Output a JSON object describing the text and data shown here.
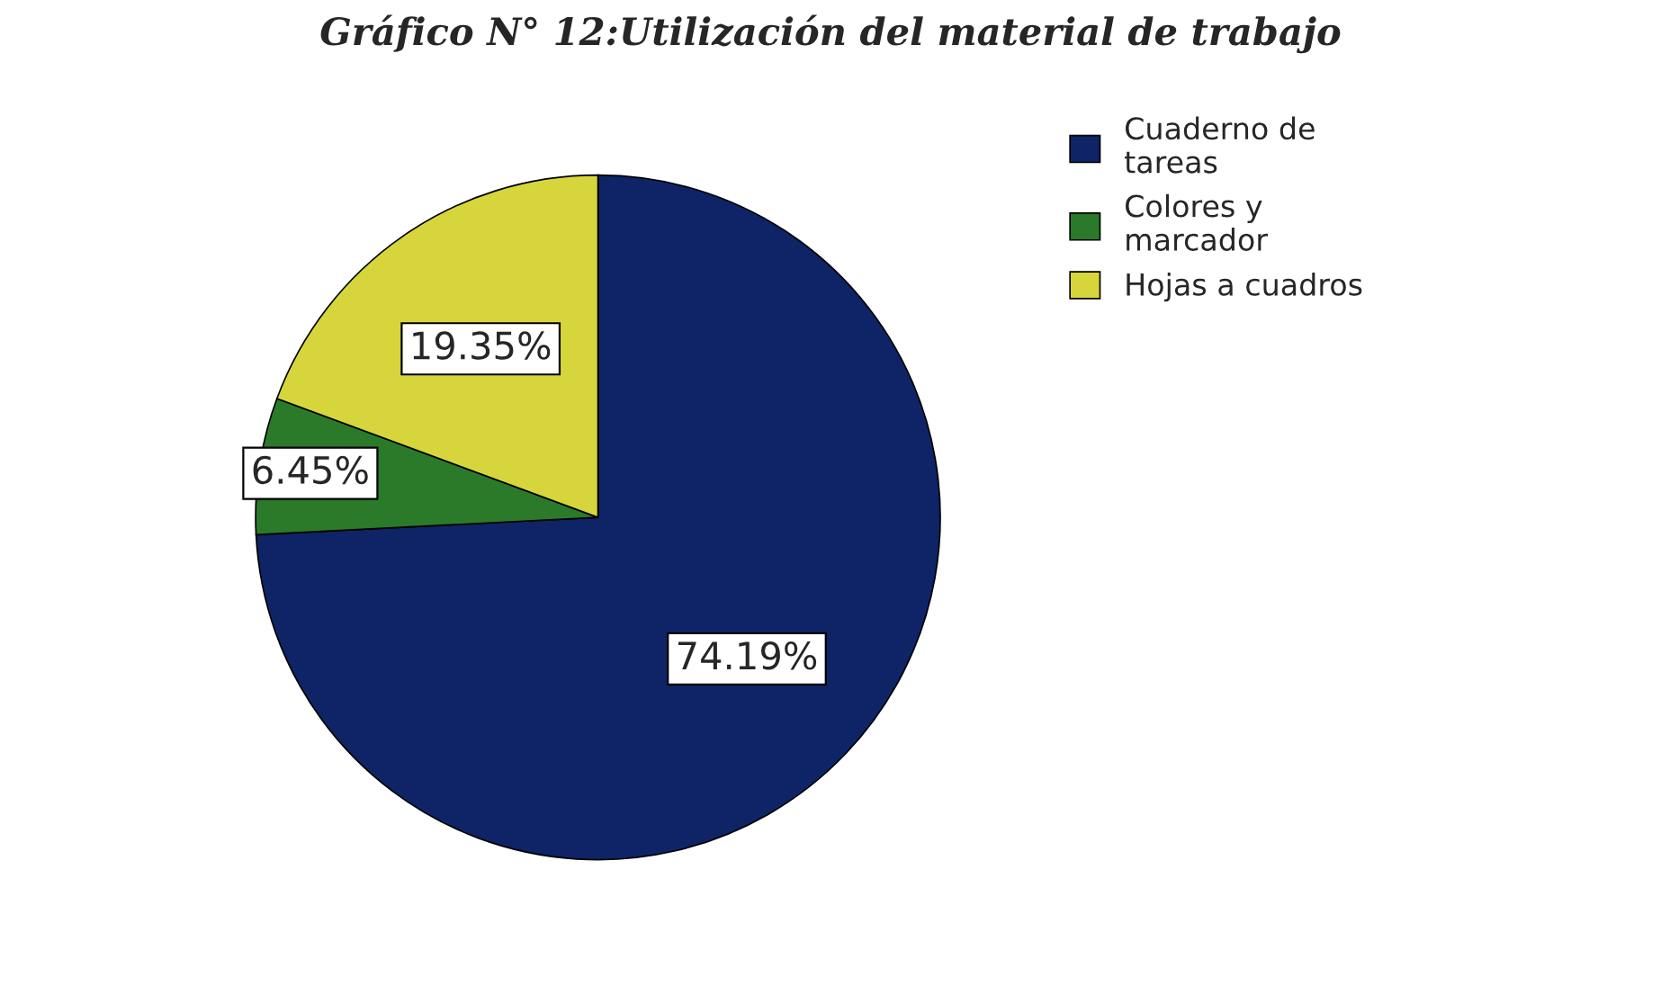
{
  "chart_data": {
    "type": "pie",
    "title": "Gráfico N° 12:Utilización del material de trabajo",
    "categories": [
      "Cuaderno de\ntareas",
      "Colores y\nmarcador",
      "Hojas a cuadros"
    ],
    "values": [
      74.19,
      6.45,
      19.35
    ],
    "colors": [
      "#0f2466",
      "#2a7a2a",
      "#d6d63c"
    ],
    "value_labels": [
      "74.19%",
      "6.45%",
      "19.35%"
    ],
    "legend": "top right"
  }
}
